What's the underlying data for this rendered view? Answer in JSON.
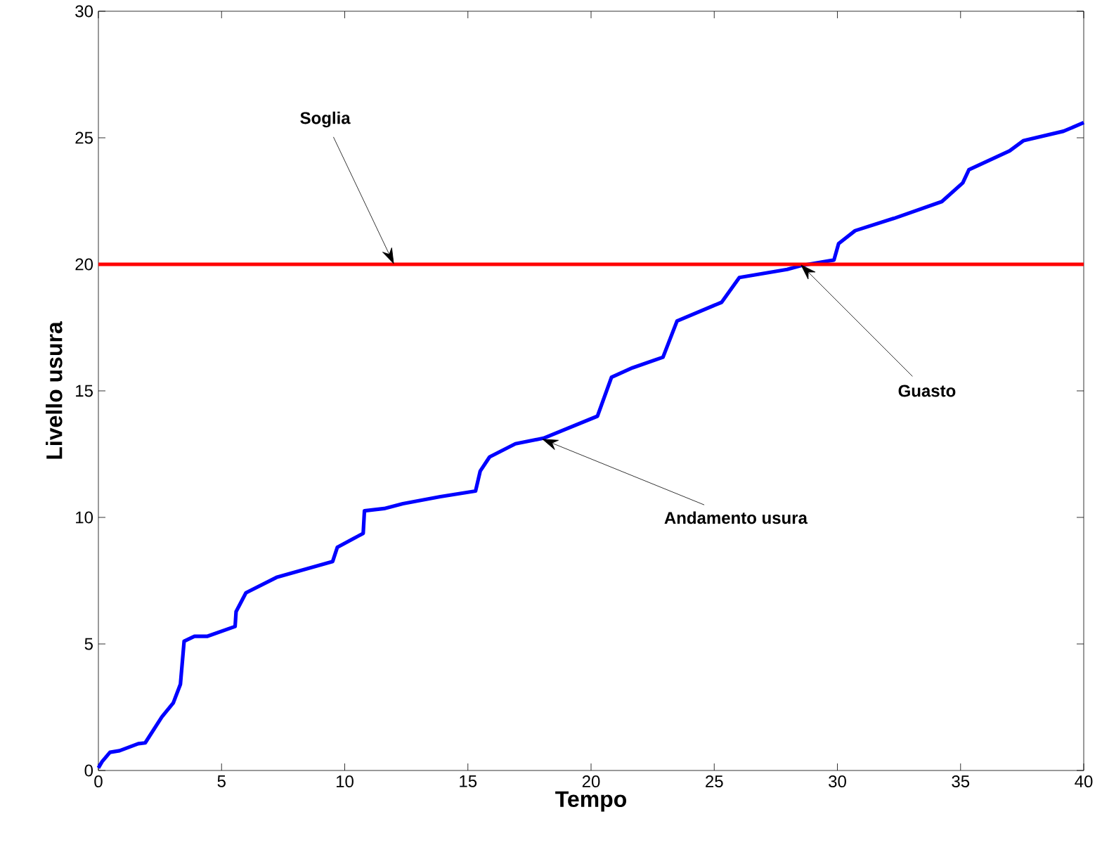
{
  "chart_data": {
    "type": "line",
    "xlabel": "Tempo",
    "ylabel": "Livello usura",
    "x": [
      0,
      0.15,
      0.47,
      0.86,
      1.62,
      1.9,
      2.57,
      3.04,
      3.33,
      3.48,
      3.9,
      4.41,
      5.55,
      5.59,
      5.99,
      7.23,
      9.51,
      9.7,
      10.75,
      10.8,
      11.6,
      12.36,
      13.88,
      15.31,
      15.5,
      15.88,
      16.93,
      18.07,
      20.26,
      20.83,
      21.68,
      22.92,
      23.49,
      25.3,
      26.02,
      27.96,
      28.53,
      29.86,
      30.05,
      30.72,
      32.34,
      34.24,
      35.09,
      35.34,
      36.99,
      37.56,
      39.18,
      40
    ],
    "series": [
      {
        "color": "#0000ff",
        "values": [
          0.1,
          0.35,
          0.72,
          0.78,
          1.06,
          1.09,
          2.11,
          2.67,
          3.41,
          5.11,
          5.3,
          5.3,
          5.69,
          6.28,
          7.02,
          7.63,
          8.26,
          8.82,
          9.37,
          10.26,
          10.35,
          10.54,
          10.82,
          11.04,
          11.83,
          12.39,
          12.91,
          13.13,
          14.0,
          15.54,
          15.91,
          16.33,
          17.76,
          18.5,
          19.48,
          19.8,
          19.95,
          20.17,
          20.82,
          21.33,
          21.83,
          22.48,
          23.22,
          23.74,
          24.48,
          24.89,
          25.26,
          25.6
        ]
      }
    ],
    "xlim": [
      0,
      40
    ],
    "ylim": [
      0,
      30
    ],
    "xticks": [
      0,
      5,
      10,
      15,
      20,
      25,
      30,
      35,
      40
    ],
    "yticks": [
      0,
      5,
      10,
      15,
      20,
      25,
      30
    ],
    "ref_lines": [
      {
        "axis": "y",
        "value": 20,
        "color": "#ff0000"
      }
    ],
    "annotations": [
      {
        "text": "Soglia",
        "x": 12,
        "y": 20
      },
      {
        "text": "Guasto",
        "x": 28.5,
        "y": 20
      },
      {
        "text": "Andamento usura",
        "x": 18,
        "y": 13.1
      }
    ],
    "grid": false,
    "marker": "none",
    "line_style": "solid"
  }
}
